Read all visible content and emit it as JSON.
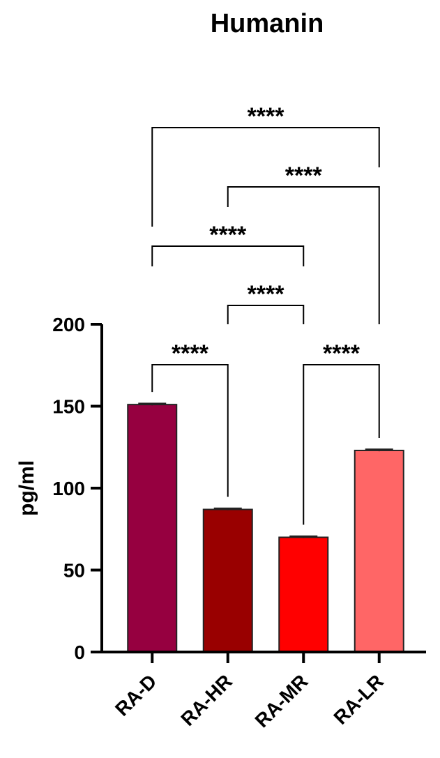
{
  "chart_data": {
    "type": "bar",
    "title": "Humanin",
    "xlabel": "",
    "ylabel": "pg/ml",
    "ylim": [
      0,
      200
    ],
    "yticks": [
      0,
      50,
      100,
      150,
      200
    ],
    "categories": [
      "RA-D",
      "RA-HR",
      "RA-MR",
      "RA-LR"
    ],
    "values": [
      151,
      87,
      70,
      123
    ],
    "errors": [
      0.5,
      0.5,
      0.5,
      0.5
    ],
    "colors": [
      "#960040",
      "#990000",
      "#FF0000",
      "#FF6666"
    ],
    "significance": [
      {
        "from": "RA-D",
        "to": "RA-HR",
        "label": "****"
      },
      {
        "from": "RA-MR",
        "to": "RA-LR",
        "label": "****"
      },
      {
        "from": "RA-HR",
        "to": "RA-MR",
        "label": "****"
      },
      {
        "from": "RA-D",
        "to": "RA-MR",
        "label": "****"
      },
      {
        "from": "RA-HR",
        "to": "RA-LR",
        "label": "****"
      },
      {
        "from": "RA-D",
        "to": "RA-LR",
        "label": "****"
      }
    ]
  }
}
